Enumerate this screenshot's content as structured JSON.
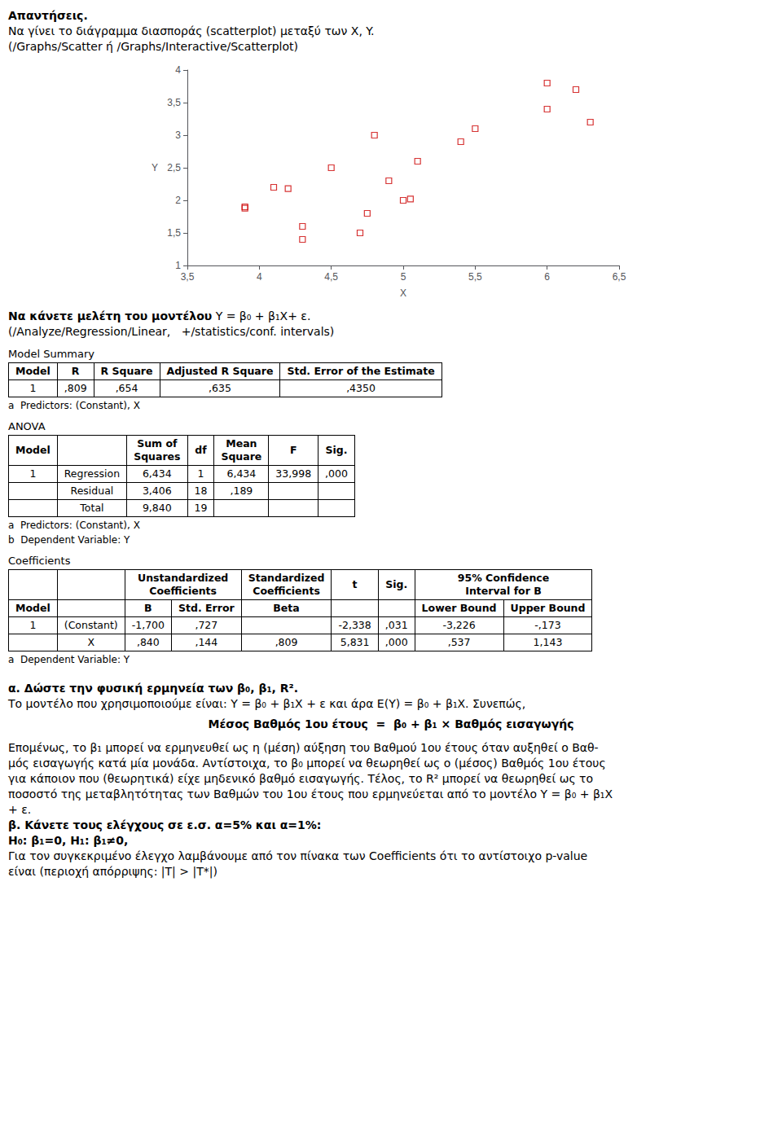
{
  "chart_data": {
    "type": "scatter",
    "xlabel": "X",
    "ylabel": "Y",
    "x": [
      3.9,
      3.9,
      4.1,
      4.2,
      4.3,
      4.3,
      4.5,
      4.7,
      4.75,
      4.8,
      4.9,
      5.0,
      5.05,
      5.1,
      5.4,
      5.5,
      6.0,
      6.0,
      6.2,
      6.3
    ],
    "values": [
      1.9,
      1.88,
      2.2,
      2.18,
      1.4,
      1.6,
      2.5,
      1.5,
      1.8,
      3.0,
      2.3,
      2.0,
      2.02,
      2.6,
      2.9,
      3.1,
      3.8,
      3.4,
      3.7,
      3.2
    ],
    "color": "#cc0000",
    "marker": "square",
    "grid": false,
    "xlim": [
      3.5,
      6.5
    ],
    "ylim": [
      1.0,
      4.0
    ],
    "xticks": [
      {
        "value": 3.5,
        "label": "3,5"
      },
      4,
      {
        "value": 4.5,
        "label": "4,5"
      },
      5,
      {
        "value": 5.5,
        "label": "5,5"
      },
      6,
      {
        "value": 6.5,
        "label": "6,5"
      }
    ],
    "yticks": [
      1,
      {
        "value": 1.5,
        "label": "1,5"
      },
      2,
      {
        "value": 2.5,
        "label": "2,5"
      },
      3,
      {
        "value": 3.5,
        "label": "3,5"
      },
      4
    ],
    "text_before": [
      {
        "parts": [
          {
            "text": "Απαντήσεις.",
            "bold": true
          }
        ]
      },
      {
        "parts": [
          {
            "text": "Να γίνει το διάγραμμα διασποράς (scatterplot) μεταξύ των X, Y."
          }
        ]
      },
      {
        "parts": [
          {
            "text": "(/Graphs/Scatter ή /Graphs/Interactive/Scatterplot)"
          }
        ]
      }
    ],
    "text_after": [
      {
        "parts": [
          {
            "text": "Να κάνετε μελέτη του μοντέλου",
            "bold": true
          },
          {
            "text": " Y = β₀ + β₁X+ ε."
          }
        ]
      },
      {
        "parts": [
          {
            "text": "(/Analyze/Regression/Linear,   +/statistics/conf. intervals)"
          }
        ]
      },
      {
        "table": {
          "title": "Model Summary",
          "header": [
            [
              "Model",
              "R",
              "R Square",
              "Adjusted R Square",
              "Std. Error of the Estimate"
            ]
          ],
          "rows": [
            [
              "1",
              ",809",
              ",654",
              ",635",
              ",4350"
            ]
          ],
          "notes": [
            "a  Predictors: (Constant), X"
          ]
        }
      },
      {
        "table": {
          "title": "ANOVA",
          "header": [
            [
              "Model",
              null,
              "Sum of\nSquares",
              "df",
              "Mean\nSquare",
              "F",
              "Sig."
            ]
          ],
          "rows": [
            [
              "1",
              "Regression",
              "6,434",
              "1",
              "6,434",
              "33,998",
              ",000"
            ],
            [
              null,
              "Residual",
              "3,406",
              "18",
              ",189",
              null,
              null
            ],
            [
              null,
              "Total",
              "9,840",
              "19",
              null,
              null,
              null
            ]
          ],
          "notes": [
            "a  Predictors: (Constant), X",
            "b  Dependent Variable: Y"
          ]
        }
      },
      {
        "table": {
          "title": "Coefficients",
          "header": [
            [
              null,
              null,
              {
                "text": "Unstandardized\nCoefficients",
                "span": 2
              },
              "Standardized\nCoefficients",
              "t",
              "Sig.",
              {
                "text": "95% Confidence\nInterval for B",
                "span": 2
              }
            ],
            [
              "Model",
              null,
              "B",
              "Std. Error",
              "Beta",
              null,
              null,
              "Lower Bound",
              "Upper Bound"
            ]
          ],
          "rows": [
            [
              "1",
              "(Constant)",
              "-1,700",
              ",727",
              null,
              "-2,338",
              ",031",
              "-3,226",
              "-,173"
            ],
            [
              null,
              "X",
              ",840",
              ",144",
              ",809",
              "5,831",
              ",000",
              ",537",
              "1,143"
            ]
          ],
          "notes": [
            "a  Dependent Variable: Y"
          ]
        }
      },
      {
        "parts": [
          {
            "text": "α. Δώστε την φυσική ερμηνεία των β₀, β₁, R².",
            "bold": true
          }
        ]
      },
      {
        "parts": [
          {
            "text": "Το μοντέλο που χρησιμοποιούμε είναι: Y = β₀ + β₁X + ε και άρα E(Y) = β₀ + β₁X. Συνεπώς,"
          }
        ]
      },
      {
        "parts": [
          {
            "text": "Μέσος Βαθμός 1ου έτους  =  β₀ + β₁ × Βαθμός εισαγωγής",
            "bold": true
          }
        ],
        "align": "center"
      },
      {
        "parts": [
          {
            "text": "Επομένως, το β₁ μπορεί να ερμηνευθεί ως η (μέση) αύξηση του Βαθμού 1ου έτους όταν αυξηθεί ο Βαθ-"
          }
        ]
      },
      {
        "parts": [
          {
            "text": "μός εισαγωγής κατά μία μονάδα. Αντίστοιχα, το β₀ μπορεί να θεωρηθεί ως ο (μέσος) Βαθμός 1ου έτους"
          }
        ]
      },
      {
        "parts": [
          {
            "text": "για κάποιον που (θεωρητικά) είχε μηδενικό βαθμό εισαγωγής. Τέλος, το R² μπορεί να θεωρηθεί ως το"
          }
        ]
      },
      {
        "parts": [
          {
            "text": "ποσοστό της μεταβλητότητας των Βαθμών του 1ου έτους που ερμηνεύεται από το μοντέλο Y = β₀ + β₁X"
          }
        ]
      },
      {
        "parts": [
          {
            "text": "+ ε."
          }
        ]
      },
      {
        "parts": [
          {
            "text": "β. Κάνετε τους ελέγχους σε ε.σ. α=5% και α=1%:",
            "bold": true
          }
        ]
      },
      {
        "parts": [
          {
            "text": "H₀: β₁=0, H₁: β₁≠0,",
            "bold": true
          }
        ]
      },
      {
        "parts": [
          {
            "text": "Για τον συγκεκριμένο έλεγχο λαμβάνουμε από τον πίνακα των Coefficients ότι το αντίστοιχο p-value"
          }
        ]
      },
      {
        "parts": [
          {
            "text": "είναι (περιοχή απόρριψης: |T| > |T*|)"
          }
        ]
      }
    ]
  }
}
